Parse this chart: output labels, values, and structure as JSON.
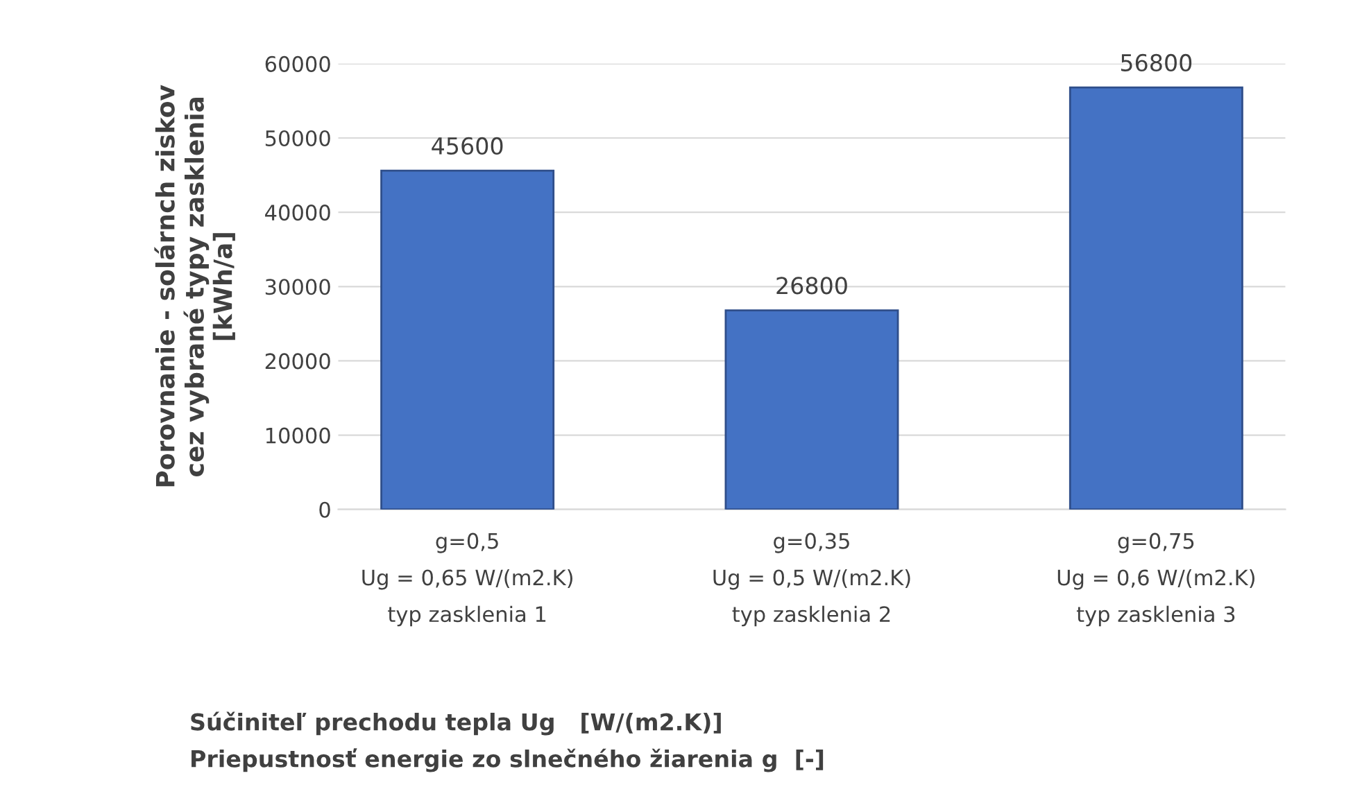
{
  "chart_data": {
    "type": "bar",
    "categories": [
      "g=0,5\nUg = 0,65 W/(m2.K)\ntyp zasklenia 1",
      "g=0,35\nUg = 0,5 W/(m2.K)\ntyp zasklenia 2",
      "g=0,75\nUg = 0,6 W/(m2.K)\ntyp zasklenia 3"
    ],
    "values": [
      45600,
      26800,
      56800
    ],
    "color": "#4472c4",
    "ylabel": "Porovnanie - solárnch ziskov\ncez vybrané typy zasklenia\n[kWh/a]",
    "xlabel": "Súčiniteľ prechodu tepla Ug   [W/(m2.K)]\nPriepustnosť energie zo slnečného žiarenia g  [-]",
    "ylim": [
      0,
      60000
    ],
    "yticks": [
      0,
      10000,
      20000,
      30000,
      40000,
      50000,
      60000
    ],
    "grid": "y",
    "data_labels": true
  }
}
